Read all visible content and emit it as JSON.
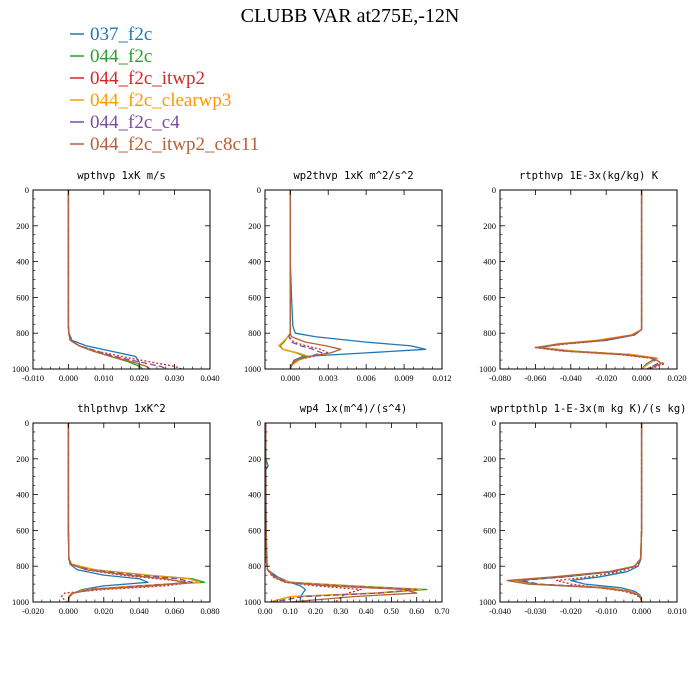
{
  "title": "CLUBB VAR at275E,-12N",
  "legend": [
    {
      "label": "037_f2c",
      "color": "#1f77b4"
    },
    {
      "label": "044_f2c",
      "color": "#2ca02c"
    },
    {
      "label": "044_f2c_itwp2",
      "color": "#d62728"
    },
    {
      "label": "044_f2c_clearwp3",
      "color": "#ff9900"
    },
    {
      "label": "044_f2c_c4",
      "color": "#7b4ea3"
    },
    {
      "label": "044_f2c_itwp2_c8c11",
      "color": "#b5613a"
    }
  ],
  "chart_data": [
    {
      "type": "line",
      "title": "wpthvp  1xK m/s",
      "xlim": [
        -0.01,
        0.04
      ],
      "ylim": [
        0,
        1000
      ],
      "xticks": [
        "-0.010",
        "0.000",
        "0.010",
        "0.020",
        "0.030",
        "0.040"
      ],
      "yticks": [
        "0",
        "200",
        "400",
        "600",
        "800",
        "1000"
      ],
      "levels": [
        0,
        200,
        400,
        600,
        760,
        800,
        840,
        870,
        900,
        930,
        960,
        985,
        1000
      ],
      "series": [
        {
          "name": "037_f2c",
          "values": [
            0,
            0,
            0,
            0,
            0,
            0.0002,
            0.001,
            0.005,
            0.012,
            0.019,
            0.02,
            0.02,
            0.02
          ]
        },
        {
          "name": "044_f2c",
          "values": [
            0,
            0,
            0,
            0,
            0,
            0.0001,
            0.0006,
            0.003,
            0.007,
            0.012,
            0.017,
            0.02,
            0.021
          ]
        },
        {
          "name": "044_f2c_itwp2",
          "values": [
            0,
            0,
            0,
            0,
            0,
            0.0001,
            0.0005,
            0.003,
            0.008,
            0.015,
            0.023,
            0.03,
            0.032
          ]
        },
        {
          "name": "044_f2c_clearwp3",
          "values": [
            0,
            0,
            0,
            0,
            0,
            0.0001,
            0.0006,
            0.003,
            0.007,
            0.012,
            0.018,
            0.022,
            0.023
          ]
        },
        {
          "name": "044_f2c_c4",
          "values": [
            0,
            0,
            0,
            0,
            0,
            0.0001,
            0.0006,
            0.003,
            0.008,
            0.013,
            0.02,
            0.026,
            0.028
          ]
        },
        {
          "name": "044_f2c_itwp2_c8c11",
          "values": [
            0,
            0,
            0,
            0,
            0,
            0.0001,
            0.0005,
            0.003,
            0.007,
            0.012,
            0.018,
            0.022,
            0.023
          ]
        }
      ]
    },
    {
      "type": "line",
      "title": "wp2thvp  1xK m^2/s^2",
      "xlim": [
        -0.002,
        0.012
      ],
      "ylim": [
        0,
        1000
      ],
      "xticks": [
        "0.000",
        "0.003",
        "0.006",
        "0.009",
        "0.012"
      ],
      "yticks": [
        "0",
        "200",
        "400",
        "600",
        "800",
        "1000"
      ],
      "levels": [
        0,
        200,
        400,
        600,
        760,
        800,
        820,
        850,
        870,
        890,
        910,
        930,
        950,
        980,
        1000
      ],
      "series": [
        {
          "name": "037_f2c",
          "values": [
            0,
            0,
            0,
            0.0001,
            0.0002,
            0.0004,
            0.002,
            0.006,
            0.0095,
            0.0107,
            0.006,
            0.001,
            0.0003,
            0.0001,
            0
          ]
        },
        {
          "name": "044_f2c",
          "values": [
            0,
            0,
            0,
            0,
            0,
            0,
            -0.0002,
            -0.0005,
            -0.0008,
            -0.0006,
            0.0005,
            0.0012,
            0.0006,
            0.0001,
            0
          ]
        },
        {
          "name": "044_f2c_itwp2",
          "values": [
            0,
            0,
            0,
            0,
            0,
            0,
            -0.0001,
            0.0003,
            0.0012,
            0.0024,
            0.003,
            0.0018,
            0.0005,
            0.0001,
            0
          ]
        },
        {
          "name": "044_f2c_clearwp3",
          "values": [
            0,
            0,
            0,
            0,
            0,
            0,
            -0.0002,
            -0.0006,
            -0.0009,
            -0.0006,
            0.0006,
            0.0015,
            0.0007,
            0.0001,
            0
          ]
        },
        {
          "name": "044_f2c_c4",
          "values": [
            0,
            0,
            0,
            0,
            0,
            0,
            -0.0001,
            0.0001,
            0.0008,
            0.0018,
            0.0025,
            0.0015,
            0.0004,
            0.0001,
            0
          ]
        },
        {
          "name": "044_f2c_itwp2_c8c11",
          "values": [
            0,
            0,
            0,
            0,
            0,
            0,
            0.0001,
            0.0012,
            0.0028,
            0.004,
            0.0032,
            0.0015,
            0.0004,
            0.0001,
            0
          ]
        }
      ]
    },
    {
      "type": "line",
      "title": "rtpthvp  1E-3x(kg/kg) K",
      "xlim": [
        -0.08,
        0.02
      ],
      "ylim": [
        0,
        1000
      ],
      "xticks": [
        "-0.080",
        "-0.060",
        "-0.040",
        "-0.020",
        "0.000",
        "0.020"
      ],
      "yticks": [
        "0",
        "200",
        "400",
        "600",
        "800",
        "1000"
      ],
      "levels": [
        0,
        200,
        400,
        600,
        780,
        810,
        840,
        860,
        880,
        900,
        920,
        940,
        970,
        1000
      ],
      "series": [
        {
          "name": "037_f2c",
          "values": [
            0,
            0,
            0,
            0,
            0,
            -0.004,
            -0.02,
            -0.045,
            -0.06,
            -0.04,
            -0.005,
            0.008,
            0.003,
            0
          ]
        },
        {
          "name": "044_f2c",
          "values": [
            0,
            0,
            0,
            0,
            0,
            -0.005,
            -0.024,
            -0.046,
            -0.057,
            -0.038,
            -0.005,
            0.009,
            0.004,
            0
          ]
        },
        {
          "name": "044_f2c_itwp2",
          "values": [
            0,
            0,
            0,
            0,
            0,
            -0.004,
            -0.02,
            -0.042,
            -0.06,
            -0.045,
            -0.012,
            0.005,
            0.013,
            0.005
          ]
        },
        {
          "name": "044_f2c_clearwp3",
          "values": [
            0,
            0,
            0,
            0,
            0,
            -0.006,
            -0.026,
            -0.048,
            -0.058,
            -0.038,
            -0.005,
            0.009,
            0.004,
            0
          ]
        },
        {
          "name": "044_f2c_c4",
          "values": [
            0,
            0,
            0,
            0,
            0,
            -0.005,
            -0.022,
            -0.045,
            -0.059,
            -0.042,
            -0.008,
            0.006,
            0.009,
            0.003
          ]
        },
        {
          "name": "044_f2c_itwp2_c8c11",
          "values": [
            0,
            0,
            0,
            0,
            0,
            -0.005,
            -0.023,
            -0.046,
            -0.06,
            -0.043,
            -0.01,
            0.007,
            0.011,
            0.004
          ]
        }
      ]
    },
    {
      "type": "line",
      "title": "thlpthvp  1xK^2",
      "xlim": [
        -0.02,
        0.08
      ],
      "ylim": [
        0,
        1000
      ],
      "xticks": [
        "-0.020",
        "0.000",
        "0.020",
        "0.040",
        "0.060",
        "0.080"
      ],
      "yticks": [
        "0",
        "200",
        "400",
        "600",
        "800",
        "1000"
      ],
      "levels": [
        0,
        200,
        400,
        600,
        760,
        790,
        820,
        850,
        870,
        890,
        910,
        930,
        950,
        970,
        1000
      ],
      "series": [
        {
          "name": "037_f2c",
          "values": [
            0,
            0,
            0,
            0,
            0.0003,
            0.001,
            0.005,
            0.02,
            0.04,
            0.045,
            0.02,
            0.008,
            0.003,
            0.0005,
            0
          ]
        },
        {
          "name": "044_f2c",
          "values": [
            0,
            0,
            0,
            0,
            0.0003,
            0.002,
            0.015,
            0.045,
            0.07,
            0.077,
            0.04,
            0.01,
            0.003,
            0.0005,
            0
          ]
        },
        {
          "name": "044_f2c_itwp2",
          "values": [
            0,
            0,
            0,
            0,
            0.0002,
            0.0015,
            0.01,
            0.03,
            0.05,
            0.07,
            0.055,
            0.02,
            -0.002,
            -0.004,
            -0.001
          ]
        },
        {
          "name": "044_f2c_clearwp3",
          "values": [
            0,
            0,
            0,
            0,
            0.0003,
            0.002,
            0.015,
            0.044,
            0.068,
            0.074,
            0.038,
            0.01,
            0.003,
            0.0005,
            0
          ]
        },
        {
          "name": "044_f2c_c4",
          "values": [
            0,
            0,
            0,
            0,
            0.0003,
            0.0015,
            0.012,
            0.04,
            0.062,
            0.07,
            0.042,
            0.012,
            0.003,
            0.0005,
            0
          ]
        },
        {
          "name": "044_f2c_itwp2_c8c11",
          "values": [
            0,
            0,
            0,
            0,
            0.0003,
            0.0015,
            0.01,
            0.033,
            0.055,
            0.066,
            0.048,
            0.015,
            0.002,
            0.0002,
            0
          ]
        }
      ]
    },
    {
      "type": "line",
      "title": "wp4  1x(m^4)/(s^4)",
      "xlim": [
        0,
        0.7
      ],
      "ylim": [
        0,
        1000
      ],
      "xticks": [
        "0.00",
        "0.10",
        "0.20",
        "0.30",
        "0.40",
        "0.50",
        "0.60",
        "0.70"
      ],
      "yticks": [
        "0",
        "200",
        "400",
        "600",
        "800",
        "1000"
      ],
      "levels": [
        0,
        200,
        240,
        260,
        400,
        600,
        780,
        820,
        860,
        890,
        910,
        930,
        950,
        970,
        1000
      ],
      "series": [
        {
          "name": "037_f2c",
          "values": [
            0.003,
            0.004,
            0.012,
            0.004,
            0.004,
            0.005,
            0.008,
            0.01,
            0.05,
            0.1,
            0.14,
            0.16,
            0.15,
            0.14,
            0.14
          ]
        },
        {
          "name": "044_f2c",
          "values": [
            0.003,
            0.003,
            0.003,
            0.003,
            0.003,
            0.004,
            0.006,
            0.01,
            0.04,
            0.1,
            0.35,
            0.64,
            0.45,
            0.1,
            0.02
          ]
        },
        {
          "name": "044_f2c_itwp2",
          "values": [
            0.003,
            0.003,
            0.003,
            0.003,
            0.003,
            0.004,
            0.006,
            0.01,
            0.03,
            0.08,
            0.2,
            0.38,
            0.33,
            0.3,
            0.28
          ]
        },
        {
          "name": "044_f2c_clearwp3",
          "values": [
            0.003,
            0.003,
            0.003,
            0.003,
            0.003,
            0.004,
            0.006,
            0.01,
            0.04,
            0.1,
            0.33,
            0.62,
            0.43,
            0.1,
            0.02
          ]
        },
        {
          "name": "044_f2c_c4",
          "values": [
            0.003,
            0.003,
            0.003,
            0.003,
            0.003,
            0.004,
            0.006,
            0.01,
            0.04,
            0.09,
            0.3,
            0.6,
            0.45,
            0.15,
            0.03
          ]
        },
        {
          "name": "044_f2c_itwp2_c8c11",
          "values": [
            0.003,
            0.003,
            0.003,
            0.003,
            0.003,
            0.004,
            0.006,
            0.01,
            0.035,
            0.08,
            0.25,
            0.55,
            0.6,
            0.35,
            0.1
          ]
        }
      ]
    },
    {
      "type": "line",
      "title": "wprtpthlp  1-E-3x(m kg K)/(s kg)",
      "xlim": [
        -0.04,
        0.01
      ],
      "ylim": [
        0,
        1000
      ],
      "xticks": [
        "-0.040",
        "-0.030",
        "-0.020",
        "-0.010",
        "0.000",
        "0.010"
      ],
      "yticks": [
        "0",
        "200",
        "400",
        "600",
        "800",
        "1000"
      ],
      "levels": [
        0,
        200,
        400,
        600,
        760,
        800,
        830,
        860,
        880,
        900,
        920,
        940,
        960,
        980,
        1000
      ],
      "series": [
        {
          "name": "037_f2c",
          "values": [
            0,
            0,
            0,
            0,
            -0.0002,
            -0.001,
            -0.004,
            -0.012,
            -0.02,
            -0.016,
            -0.006,
            -0.002,
            -0.0005,
            -0.0001,
            0
          ]
        },
        {
          "name": "044_f2c",
          "values": [
            0,
            0,
            0,
            0,
            -0.0003,
            -0.002,
            -0.008,
            -0.022,
            -0.035,
            -0.03,
            -0.01,
            -0.003,
            -0.0008,
            -0.0001,
            0
          ]
        },
        {
          "name": "044_f2c_itwp2",
          "values": [
            0,
            0,
            0,
            0,
            -0.0002,
            -0.0015,
            -0.006,
            -0.015,
            -0.024,
            -0.02,
            -0.012,
            -0.005,
            -0.0015,
            -0.0003,
            0
          ]
        },
        {
          "name": "044_f2c_clearwp3",
          "values": [
            0,
            0,
            0,
            0,
            -0.0003,
            -0.002,
            -0.009,
            -0.024,
            -0.037,
            -0.031,
            -0.01,
            -0.003,
            -0.0008,
            -0.0001,
            0
          ]
        },
        {
          "name": "044_f2c_c4",
          "values": [
            0,
            0,
            0,
            0,
            -0.0003,
            -0.002,
            -0.008,
            -0.022,
            -0.034,
            -0.029,
            -0.011,
            -0.004,
            -0.001,
            -0.0002,
            0
          ]
        },
        {
          "name": "044_f2c_itwp2_c8c11",
          "values": [
            0,
            0,
            0,
            0,
            -0.0003,
            -0.002,
            -0.009,
            -0.025,
            -0.038,
            -0.032,
            -0.012,
            -0.004,
            -0.001,
            -0.0002,
            0
          ]
        }
      ]
    }
  ]
}
